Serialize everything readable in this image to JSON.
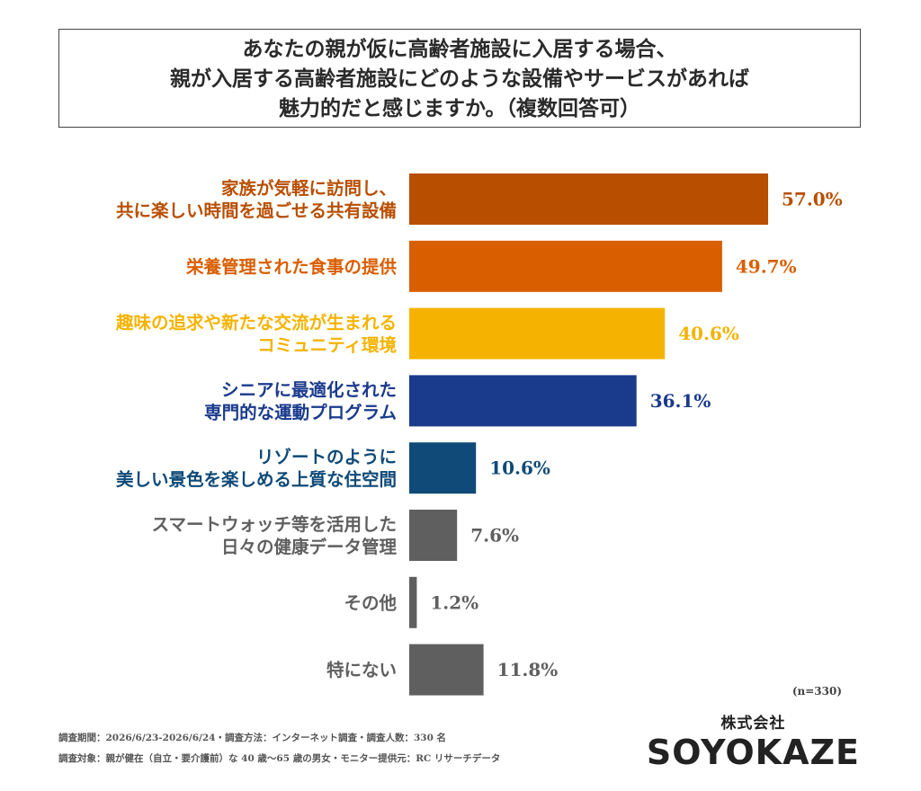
{
  "title": {
    "lines": [
      "あなたの親が仮に高齢者施設に入居する場合、",
      "親が入居する高齢者施設にどのような設備やサービスがあれば",
      "魅力的だと感じますか。（複数回答可）"
    ]
  },
  "chart_data": {
    "type": "bar",
    "orientation": "horizontal",
    "categories": [
      [
        "家族が気軽に訪問し、",
        "共に楽しい時間を過ごせる共有設備"
      ],
      [
        "栄養管理された食事の提供"
      ],
      [
        "趣味の追求や新たな交流が生まれる",
        "コミュニティ環境"
      ],
      [
        "シニアに最適化された",
        "専門的な運動プログラム"
      ],
      [
        "リゾートのように",
        "美しい景色を楽しめる上質な住空間"
      ],
      [
        "スマートウォッチ等を活用した",
        "日々の健康データ管理"
      ],
      [
        "その他"
      ],
      [
        "特にない"
      ]
    ],
    "values": [
      57.0,
      49.7,
      40.6,
      36.1,
      10.6,
      7.6,
      1.2,
      11.8
    ],
    "value_labels": [
      "57.0%",
      "49.7%",
      "40.6%",
      "36.1%",
      "10.6%",
      "7.6%",
      "1.2%",
      "11.8%"
    ],
    "colors": [
      "#b84e00",
      "#d95e00",
      "#f5b300",
      "#1a3a8c",
      "#0f4a78",
      "#5f5f5f",
      "#5f5f5f",
      "#5f5f5f"
    ],
    "xlim": [
      0,
      100
    ],
    "grid": false,
    "legend": "none"
  },
  "note": "(n=330)",
  "footnotes": [
    "調査期間：2026/6/23-2026/6/24・調査方法：インターネット調査・調査人数：330 名",
    "調査対象：親が健在（自立・要介護前）な 40 歳〜65 歳の男女・モニター提供元：RC リサーチデータ"
  ],
  "brand": {
    "corp": "株式会社",
    "logo": "SOYOKAZE"
  }
}
